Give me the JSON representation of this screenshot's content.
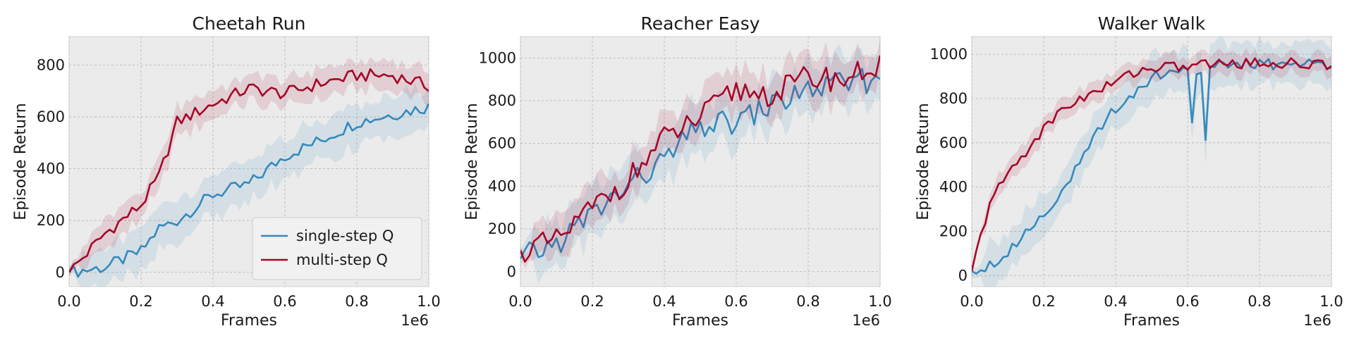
{
  "colors": {
    "single": "#348ABD",
    "multi": "#A60628",
    "panel_bg": "#EBEBEB",
    "grid": "#B2B2B2"
  },
  "legend": {
    "entries": [
      "single-step Q",
      "multi-step Q"
    ],
    "placement": "lower-right (first panel only)"
  },
  "chart_data": [
    {
      "type": "line",
      "title": "Cheetah Run",
      "xlabel": "Frames",
      "ylabel": "Episode Return",
      "x_multiplier": "1e6",
      "xlim": [
        0,
        1.0
      ],
      "ylim": [
        -55,
        910
      ],
      "xticks": [
        0.0,
        0.2,
        0.4,
        0.6,
        0.8,
        1.0
      ],
      "xtick_labels": [
        "0.0",
        "0.2",
        "0.4",
        "0.6",
        "0.8",
        "1.0"
      ],
      "yticks": [
        0,
        200,
        400,
        600,
        800
      ],
      "ytick_labels": [
        "0",
        "200",
        "400",
        "600",
        "800"
      ],
      "grid": true,
      "legend": true,
      "x": [
        0.0,
        0.1,
        0.2,
        0.25,
        0.3,
        0.4,
        0.5,
        0.6,
        0.7,
        0.8,
        0.9,
        1.0
      ],
      "series": [
        {
          "name": "single-step Q",
          "key": "single",
          "y": [
            0,
            20,
            80,
            170,
            200,
            300,
            340,
            450,
            510,
            580,
            610,
            640
          ],
          "band": 100
        },
        {
          "name": "multi-step Q",
          "key": "multi",
          "y": [
            0,
            150,
            260,
            370,
            580,
            650,
            710,
            690,
            730,
            760,
            760,
            720
          ],
          "band": 70
        }
      ]
    },
    {
      "type": "line",
      "title": "Reacher Easy",
      "xlabel": "Frames",
      "ylabel": "Episode Return",
      "x_multiplier": "1e6",
      "xlim": [
        0,
        1.0
      ],
      "ylim": [
        -70,
        1100
      ],
      "xticks": [
        0.0,
        0.2,
        0.4,
        0.6,
        0.8,
        1.0
      ],
      "xtick_labels": [
        "0.0",
        "0.2",
        "0.4",
        "0.6",
        "0.8",
        "1.0"
      ],
      "yticks": [
        0,
        200,
        400,
        600,
        800,
        1000
      ],
      "ytick_labels": [
        "0",
        "200",
        "400",
        "600",
        "800",
        "1000"
      ],
      "grid": true,
      "legend": false,
      "x": [
        0.0,
        0.1,
        0.2,
        0.3,
        0.4,
        0.5,
        0.6,
        0.7,
        0.8,
        0.9,
        1.0
      ],
      "series": [
        {
          "name": "single-step Q",
          "key": "single",
          "y": [
            60,
            130,
            270,
            400,
            520,
            680,
            700,
            780,
            850,
            880,
            900
          ],
          "band": 140
        },
        {
          "name": "multi-step Q",
          "key": "multi",
          "y": [
            100,
            140,
            300,
            430,
            620,
            720,
            850,
            830,
            910,
            900,
            970
          ],
          "band": 120
        }
      ]
    },
    {
      "type": "line",
      "title": "Walker Walk",
      "xlabel": "Frames",
      "ylabel": "Episode Return",
      "x_multiplier": "1e6",
      "xlim": [
        0,
        1.0
      ],
      "ylim": [
        -50,
        1080
      ],
      "xticks": [
        0.0,
        0.2,
        0.4,
        0.6,
        0.8,
        1.0
      ],
      "xtick_labels": [
        "0.0",
        "0.2",
        "0.4",
        "0.6",
        "0.8",
        "1.0"
      ],
      "yticks": [
        0,
        200,
        400,
        600,
        800,
        1000
      ],
      "ytick_labels": [
        "0",
        "200",
        "400",
        "600",
        "800",
        "1000"
      ],
      "grid": true,
      "legend": false,
      "x": [
        0.0,
        0.05,
        0.1,
        0.15,
        0.2,
        0.25,
        0.3,
        0.35,
        0.4,
        0.45,
        0.5,
        0.6,
        0.61,
        0.62,
        0.64,
        0.65,
        0.66,
        0.7,
        0.8,
        0.9,
        0.97,
        1.0
      ],
      "series": [
        {
          "name": "single-step Q",
          "key": "single",
          "y": [
            20,
            50,
            100,
            200,
            280,
            380,
            500,
            650,
            760,
            820,
            900,
            940,
            630,
            930,
            930,
            600,
            940,
            950,
            955,
            955,
            960,
            955
          ],
          "band": 120
        },
        {
          "name": "multi-step Q",
          "key": "multi",
          "y": [
            20,
            330,
            460,
            560,
            660,
            750,
            800,
            830,
            880,
            920,
            940,
            945,
            950,
            955,
            955,
            955,
            955,
            960,
            960,
            960,
            950,
            955
          ],
          "band": 60
        }
      ]
    }
  ]
}
